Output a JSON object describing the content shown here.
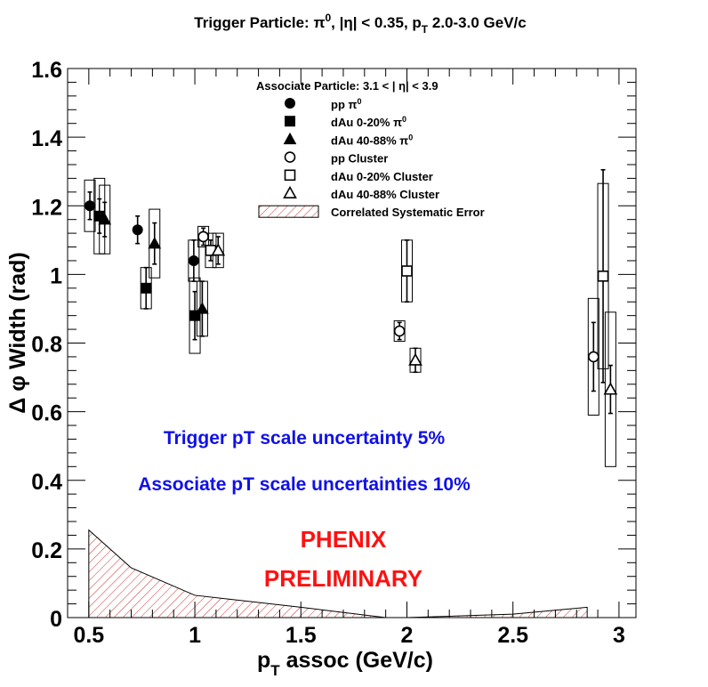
{
  "chart_data": {
    "type": "scatter",
    "title_main": "Trigger Particle: π",
    "title_sup": "0",
    "title_mid": ", |η| < 0.35, p",
    "title_sub": "T",
    "title_tail": " 2.0-3.0 GeV/c",
    "xlabel_main": "p",
    "xlabel_sub": "T",
    "xlabel_tail": " assoc (GeV/c)",
    "ylabel": "Δ φ Width (rad)",
    "xlim": [
      0.4,
      3.08
    ],
    "ylim": [
      0,
      1.6
    ],
    "xticks": [
      {
        "v": 0.5,
        "label": "0.5"
      },
      {
        "v": 1.0,
        "label": "1"
      },
      {
        "v": 1.5,
        "label": "1.5"
      },
      {
        "v": 2.0,
        "label": "2"
      },
      {
        "v": 2.5,
        "label": "2.5"
      },
      {
        "v": 3.0,
        "label": "3"
      }
    ],
    "yticks": [
      {
        "v": 0,
        "label": "0"
      },
      {
        "v": 0.2,
        "label": "0.2"
      },
      {
        "v": 0.4,
        "label": "0.4"
      },
      {
        "v": 0.6,
        "label": "0.6"
      },
      {
        "v": 0.8,
        "label": "0.8"
      },
      {
        "v": 1.0,
        "label": "1"
      },
      {
        "v": 1.2,
        "label": "1.2"
      },
      {
        "v": 1.4,
        "label": "1.4"
      },
      {
        "v": 1.6,
        "label": "1.6"
      }
    ],
    "legend_title": "Associate Particle: 3.1 < |  η| < 3.9",
    "series": [
      {
        "name": "pp  π",
        "name_sup": "0",
        "marker": "circle-filled",
        "points": [
          {
            "x": 0.505,
            "y": 1.2,
            "stat": 0.04,
            "sys": 0.075
          },
          {
            "x": 0.73,
            "y": 1.13,
            "stat": 0.04,
            "sys": 0.0
          },
          {
            "x": 0.995,
            "y": 1.04,
            "stat": 0.06,
            "sys": 0.06
          }
        ]
      },
      {
        "name": "dAu 0-20%  π",
        "name_sup": "0",
        "marker": "square-filled",
        "points": [
          {
            "x": 0.55,
            "y": 1.17,
            "stat": 0.05,
            "sys": 0.11
          },
          {
            "x": 0.77,
            "y": 0.96,
            "stat": 0.06,
            "sys": 0.06
          },
          {
            "x": 1.0,
            "y": 0.88,
            "stat": 0.07,
            "sys": 0.11
          }
        ]
      },
      {
        "name": "dAu 40-88%  π",
        "name_sup": "0",
        "marker": "triangle-filled",
        "points": [
          {
            "x": 0.575,
            "y": 1.16,
            "stat": 0.05,
            "sys": 0.1
          },
          {
            "x": 0.81,
            "y": 1.09,
            "stat": 0.06,
            "sys": 0.1
          },
          {
            "x": 1.035,
            "y": 0.9,
            "stat": 0.08,
            "sys": 0.08
          }
        ]
      },
      {
        "name": "pp Cluster",
        "marker": "circle-open",
        "points": [
          {
            "x": 1.04,
            "y": 1.11,
            "stat": 0.025,
            "sys": 0.03
          },
          {
            "x": 1.965,
            "y": 0.835,
            "stat": 0.025,
            "sys": 0.03
          },
          {
            "x": 2.88,
            "y": 0.76,
            "stat": 0.1,
            "sys": 0.17
          }
        ]
      },
      {
        "name": "dAu 0-20% Cluster",
        "marker": "square-open",
        "points": [
          {
            "x": 1.075,
            "y": 1.07,
            "stat": 0.03,
            "sys": 0.05
          },
          {
            "x": 2.0,
            "y": 1.01,
            "stat": 0.09,
            "sys": 0.09
          },
          {
            "x": 2.925,
            "y": 0.995,
            "stat": 0.31,
            "sys": 0.27
          }
        ]
      },
      {
        "name": "dAu 40-88% Cluster",
        "marker": "triangle-open",
        "points": [
          {
            "x": 1.11,
            "y": 1.07,
            "stat": 0.04,
            "sys": 0.05
          },
          {
            "x": 2.04,
            "y": 0.75,
            "stat": 0.035,
            "sys": 0.035
          },
          {
            "x": 2.96,
            "y": 0.665,
            "stat": 0.07,
            "sys": 0.225
          }
        ]
      }
    ],
    "systematic_band": {
      "name": "Correlated Systematic Error",
      "color": "#cc4444",
      "x": [
        0.5,
        0.7,
        1.0,
        1.5,
        1.9,
        2.0,
        2.5,
        2.85
      ],
      "y": [
        0.255,
        0.145,
        0.065,
        0.03,
        0.0,
        0.0,
        0.01,
        0.03
      ]
    },
    "annotations": [
      {
        "text": "Trigger pT scale uncertainty 5%",
        "color": "#1010e8"
      },
      {
        "text": "Associate pT scale uncertainties 10%",
        "color": "#1010e8"
      },
      {
        "text": "PHENIX",
        "color": "#ff1010"
      },
      {
        "text": "PRELIMINARY",
        "color": "#ff1010"
      }
    ]
  }
}
